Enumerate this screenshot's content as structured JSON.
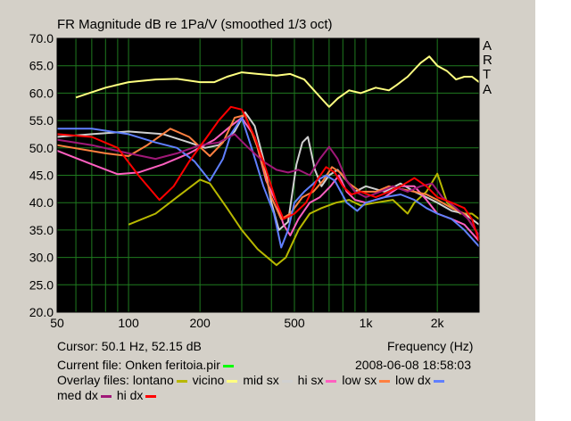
{
  "title": "FR Magnitude dB re 1Pa/V (smoothed 1/3 oct)",
  "watermark": [
    "A",
    "R",
    "T",
    "A"
  ],
  "cursor_text": "Cursor: 50.1 Hz, 52.15 dB",
  "xlabel": "Frequency (Hz)",
  "current_file_label": "Current file: Onken feritoia.pir",
  "current_file_color": "#00ff00",
  "timestamp": "2008-06-08   18:58:03",
  "overlay_label": "Overlay files:",
  "overlays": [
    {
      "name": "lontano",
      "color": "#b8b800"
    },
    {
      "name": "vicino",
      "color": "#ffff80"
    },
    {
      "name": "mid sx",
      "color": "#d0d0d0"
    },
    {
      "name": "hi sx",
      "color": "#ff60c0"
    },
    {
      "name": "low sx",
      "color": "#ff8040"
    },
    {
      "name": "low dx",
      "color": "#6080ff"
    },
    {
      "name": "med dx",
      "color": "#a01878"
    },
    {
      "name": "hi dx",
      "color": "#ff0000"
    }
  ],
  "chart_data": {
    "type": "line",
    "title": "FR Magnitude dB re 1Pa/V (smoothed 1/3 oct)",
    "xlabel": "Frequency (Hz)",
    "ylabel": "",
    "xscale": "log",
    "xlim": [
      50,
      3000
    ],
    "ylim": [
      20,
      70
    ],
    "grid": true,
    "background": "#000000",
    "grid_color": "#1f7a1f",
    "x_ticks": [
      50,
      100,
      200,
      500,
      1000,
      2000
    ],
    "x_tick_labels": [
      "50",
      "100",
      "200",
      "500",
      "1k",
      "2k"
    ],
    "y_ticks": [
      20,
      25,
      30,
      35,
      40,
      45,
      50,
      55,
      60,
      65,
      70
    ],
    "y_tick_labels": [
      "20.0",
      "25.0",
      "30.0",
      "35.0",
      "40.0",
      "45.0",
      "50.0",
      "55.0",
      "60.0",
      "65.0",
      "70.0"
    ],
    "series": [
      {
        "name": "lontano",
        "color": "#b8b800",
        "points": [
          [
            100,
            36
          ],
          [
            130,
            38
          ],
          [
            160,
            41
          ],
          [
            200,
            44.2
          ],
          [
            220,
            43.5
          ],
          [
            260,
            39
          ],
          [
            300,
            35
          ],
          [
            350,
            31.5
          ],
          [
            420,
            28.6
          ],
          [
            460,
            30
          ],
          [
            520,
            35
          ],
          [
            580,
            38
          ],
          [
            650,
            39
          ],
          [
            750,
            40
          ],
          [
            850,
            40.5
          ],
          [
            950,
            39.5
          ],
          [
            1100,
            40
          ],
          [
            1300,
            40.5
          ],
          [
            1500,
            38
          ],
          [
            1600,
            40
          ],
          [
            1800,
            42
          ],
          [
            2000,
            45.3
          ],
          [
            2200,
            40
          ],
          [
            2500,
            38
          ],
          [
            2800,
            38
          ],
          [
            3000,
            37
          ]
        ]
      },
      {
        "name": "vicino",
        "color": "#ffff80",
        "points": [
          [
            60,
            59.2
          ],
          [
            80,
            61
          ],
          [
            100,
            62
          ],
          [
            130,
            62.5
          ],
          [
            160,
            62.6
          ],
          [
            200,
            62
          ],
          [
            230,
            62
          ],
          [
            260,
            63
          ],
          [
            300,
            63.8
          ],
          [
            350,
            63.5
          ],
          [
            420,
            63.2
          ],
          [
            480,
            63.5
          ],
          [
            550,
            62.5
          ],
          [
            650,
            59
          ],
          [
            700,
            57.5
          ],
          [
            760,
            59
          ],
          [
            850,
            60.5
          ],
          [
            950,
            60
          ],
          [
            1100,
            61
          ],
          [
            1250,
            60.5
          ],
          [
            1350,
            61.5
          ],
          [
            1500,
            63
          ],
          [
            1700,
            65.5
          ],
          [
            1850,
            66.7
          ],
          [
            2000,
            65
          ],
          [
            2200,
            64
          ],
          [
            2400,
            62.5
          ],
          [
            2600,
            63
          ],
          [
            2800,
            63
          ],
          [
            3000,
            62
          ]
        ]
      },
      {
        "name": "mid sx",
        "color": "#d0d0d0",
        "points": [
          [
            50,
            52
          ],
          [
            70,
            52.5
          ],
          [
            100,
            53
          ],
          [
            140,
            52.5
          ],
          [
            180,
            51
          ],
          [
            210,
            50
          ],
          [
            240,
            50.5
          ],
          [
            280,
            53
          ],
          [
            310,
            56.5
          ],
          [
            340,
            54
          ],
          [
            370,
            48
          ],
          [
            400,
            40
          ],
          [
            430,
            35
          ],
          [
            470,
            36.5
          ],
          [
            510,
            47
          ],
          [
            540,
            51
          ],
          [
            570,
            52
          ],
          [
            610,
            46
          ],
          [
            650,
            43
          ],
          [
            700,
            45
          ],
          [
            760,
            46
          ],
          [
            830,
            44
          ],
          [
            900,
            42
          ],
          [
            1000,
            43
          ],
          [
            1200,
            42
          ],
          [
            1400,
            43.5
          ],
          [
            1600,
            42
          ],
          [
            1800,
            41
          ],
          [
            2000,
            40
          ],
          [
            2300,
            38.5
          ],
          [
            2600,
            38
          ],
          [
            3000,
            36
          ]
        ]
      },
      {
        "name": "hi sx",
        "color": "#ff60c0",
        "points": [
          [
            50,
            49.5
          ],
          [
            70,
            47
          ],
          [
            90,
            45.2
          ],
          [
            110,
            45.5
          ],
          [
            140,
            47
          ],
          [
            180,
            49
          ],
          [
            230,
            51.5
          ],
          [
            270,
            54
          ],
          [
            300,
            55.5
          ],
          [
            340,
            52
          ],
          [
            380,
            44
          ],
          [
            420,
            40
          ],
          [
            450,
            36
          ],
          [
            480,
            34
          ],
          [
            520,
            37
          ],
          [
            580,
            40
          ],
          [
            640,
            41
          ],
          [
            710,
            43
          ],
          [
            770,
            45
          ],
          [
            830,
            42
          ],
          [
            900,
            40.5
          ],
          [
            1000,
            40
          ],
          [
            1200,
            41
          ],
          [
            1400,
            43
          ],
          [
            1600,
            43
          ],
          [
            1800,
            40.5
          ],
          [
            2000,
            38
          ],
          [
            2300,
            37
          ],
          [
            2600,
            36
          ],
          [
            3000,
            33
          ]
        ]
      },
      {
        "name": "low sx",
        "color": "#ff8040",
        "points": [
          [
            50,
            50.5
          ],
          [
            80,
            49
          ],
          [
            100,
            48.5
          ],
          [
            120,
            50.5
          ],
          [
            150,
            53.5
          ],
          [
            180,
            52
          ],
          [
            220,
            48.5
          ],
          [
            250,
            51
          ],
          [
            280,
            55.5
          ],
          [
            310,
            56
          ],
          [
            350,
            50
          ],
          [
            400,
            41
          ],
          [
            440,
            37
          ],
          [
            480,
            38
          ],
          [
            540,
            41
          ],
          [
            600,
            42
          ],
          [
            660,
            44
          ],
          [
            720,
            46.5
          ],
          [
            780,
            45.5
          ],
          [
            850,
            43.5
          ],
          [
            950,
            42
          ],
          [
            1100,
            42
          ],
          [
            1250,
            43
          ],
          [
            1400,
            42.5
          ],
          [
            1600,
            42
          ],
          [
            1800,
            41.5
          ],
          [
            2000,
            40.5
          ],
          [
            2300,
            39
          ],
          [
            2600,
            38
          ],
          [
            3000,
            34
          ]
        ]
      },
      {
        "name": "low dx",
        "color": "#6080ff",
        "points": [
          [
            50,
            53.5
          ],
          [
            70,
            53.5
          ],
          [
            100,
            52.5
          ],
          [
            130,
            51
          ],
          [
            160,
            50
          ],
          [
            190,
            47.5
          ],
          [
            220,
            44
          ],
          [
            250,
            48
          ],
          [
            270,
            52.5
          ],
          [
            300,
            55.5
          ],
          [
            330,
            50
          ],
          [
            370,
            43
          ],
          [
            410,
            38
          ],
          [
            440,
            31.8
          ],
          [
            470,
            35
          ],
          [
            500,
            40
          ],
          [
            550,
            42
          ],
          [
            620,
            44
          ],
          [
            680,
            45
          ],
          [
            740,
            44
          ],
          [
            830,
            40
          ],
          [
            920,
            38.5
          ],
          [
            1000,
            40
          ],
          [
            1200,
            41
          ],
          [
            1400,
            41.5
          ],
          [
            1600,
            40.5
          ],
          [
            1800,
            39
          ],
          [
            2000,
            38
          ],
          [
            2300,
            37
          ],
          [
            2600,
            35
          ],
          [
            3000,
            32
          ]
        ]
      },
      {
        "name": "med dx",
        "color": "#a01878",
        "points": [
          [
            50,
            51.5
          ],
          [
            70,
            50.5
          ],
          [
            100,
            49
          ],
          [
            130,
            48
          ],
          [
            160,
            49
          ],
          [
            200,
            50.5
          ],
          [
            240,
            51
          ],
          [
            280,
            52.5
          ],
          [
            320,
            50
          ],
          [
            370,
            47.5
          ],
          [
            420,
            46
          ],
          [
            470,
            45.5
          ],
          [
            520,
            46
          ],
          [
            580,
            45
          ],
          [
            640,
            48
          ],
          [
            700,
            50.2
          ],
          [
            760,
            48
          ],
          [
            830,
            44
          ],
          [
            900,
            42
          ],
          [
            1000,
            41
          ],
          [
            1150,
            42
          ],
          [
            1300,
            43
          ],
          [
            1500,
            42
          ],
          [
            1700,
            43
          ],
          [
            1900,
            43.5
          ],
          [
            2100,
            41
          ],
          [
            2400,
            39
          ],
          [
            2700,
            37
          ],
          [
            3000,
            34
          ]
        ]
      },
      {
        "name": "hi dx",
        "color": "#ff0000",
        "points": [
          [
            50,
            52.5
          ],
          [
            70,
            52
          ],
          [
            90,
            50
          ],
          [
            110,
            45
          ],
          [
            135,
            40.5
          ],
          [
            155,
            43
          ],
          [
            180,
            47.5
          ],
          [
            210,
            51.5
          ],
          [
            240,
            55
          ],
          [
            270,
            57.5
          ],
          [
            300,
            57
          ],
          [
            340,
            52
          ],
          [
            380,
            46
          ],
          [
            420,
            40
          ],
          [
            450,
            37
          ],
          [
            500,
            38
          ],
          [
            560,
            40
          ],
          [
            620,
            44
          ],
          [
            680,
            46.5
          ],
          [
            740,
            45.5
          ],
          [
            800,
            43
          ],
          [
            870,
            41.5
          ],
          [
            950,
            42
          ],
          [
            1100,
            41
          ],
          [
            1250,
            42
          ],
          [
            1400,
            43
          ],
          [
            1600,
            44.5
          ],
          [
            1800,
            43
          ],
          [
            2000,
            41
          ],
          [
            2300,
            40
          ],
          [
            2600,
            39
          ],
          [
            2800,
            37
          ],
          [
            3000,
            33
          ]
        ]
      }
    ]
  }
}
